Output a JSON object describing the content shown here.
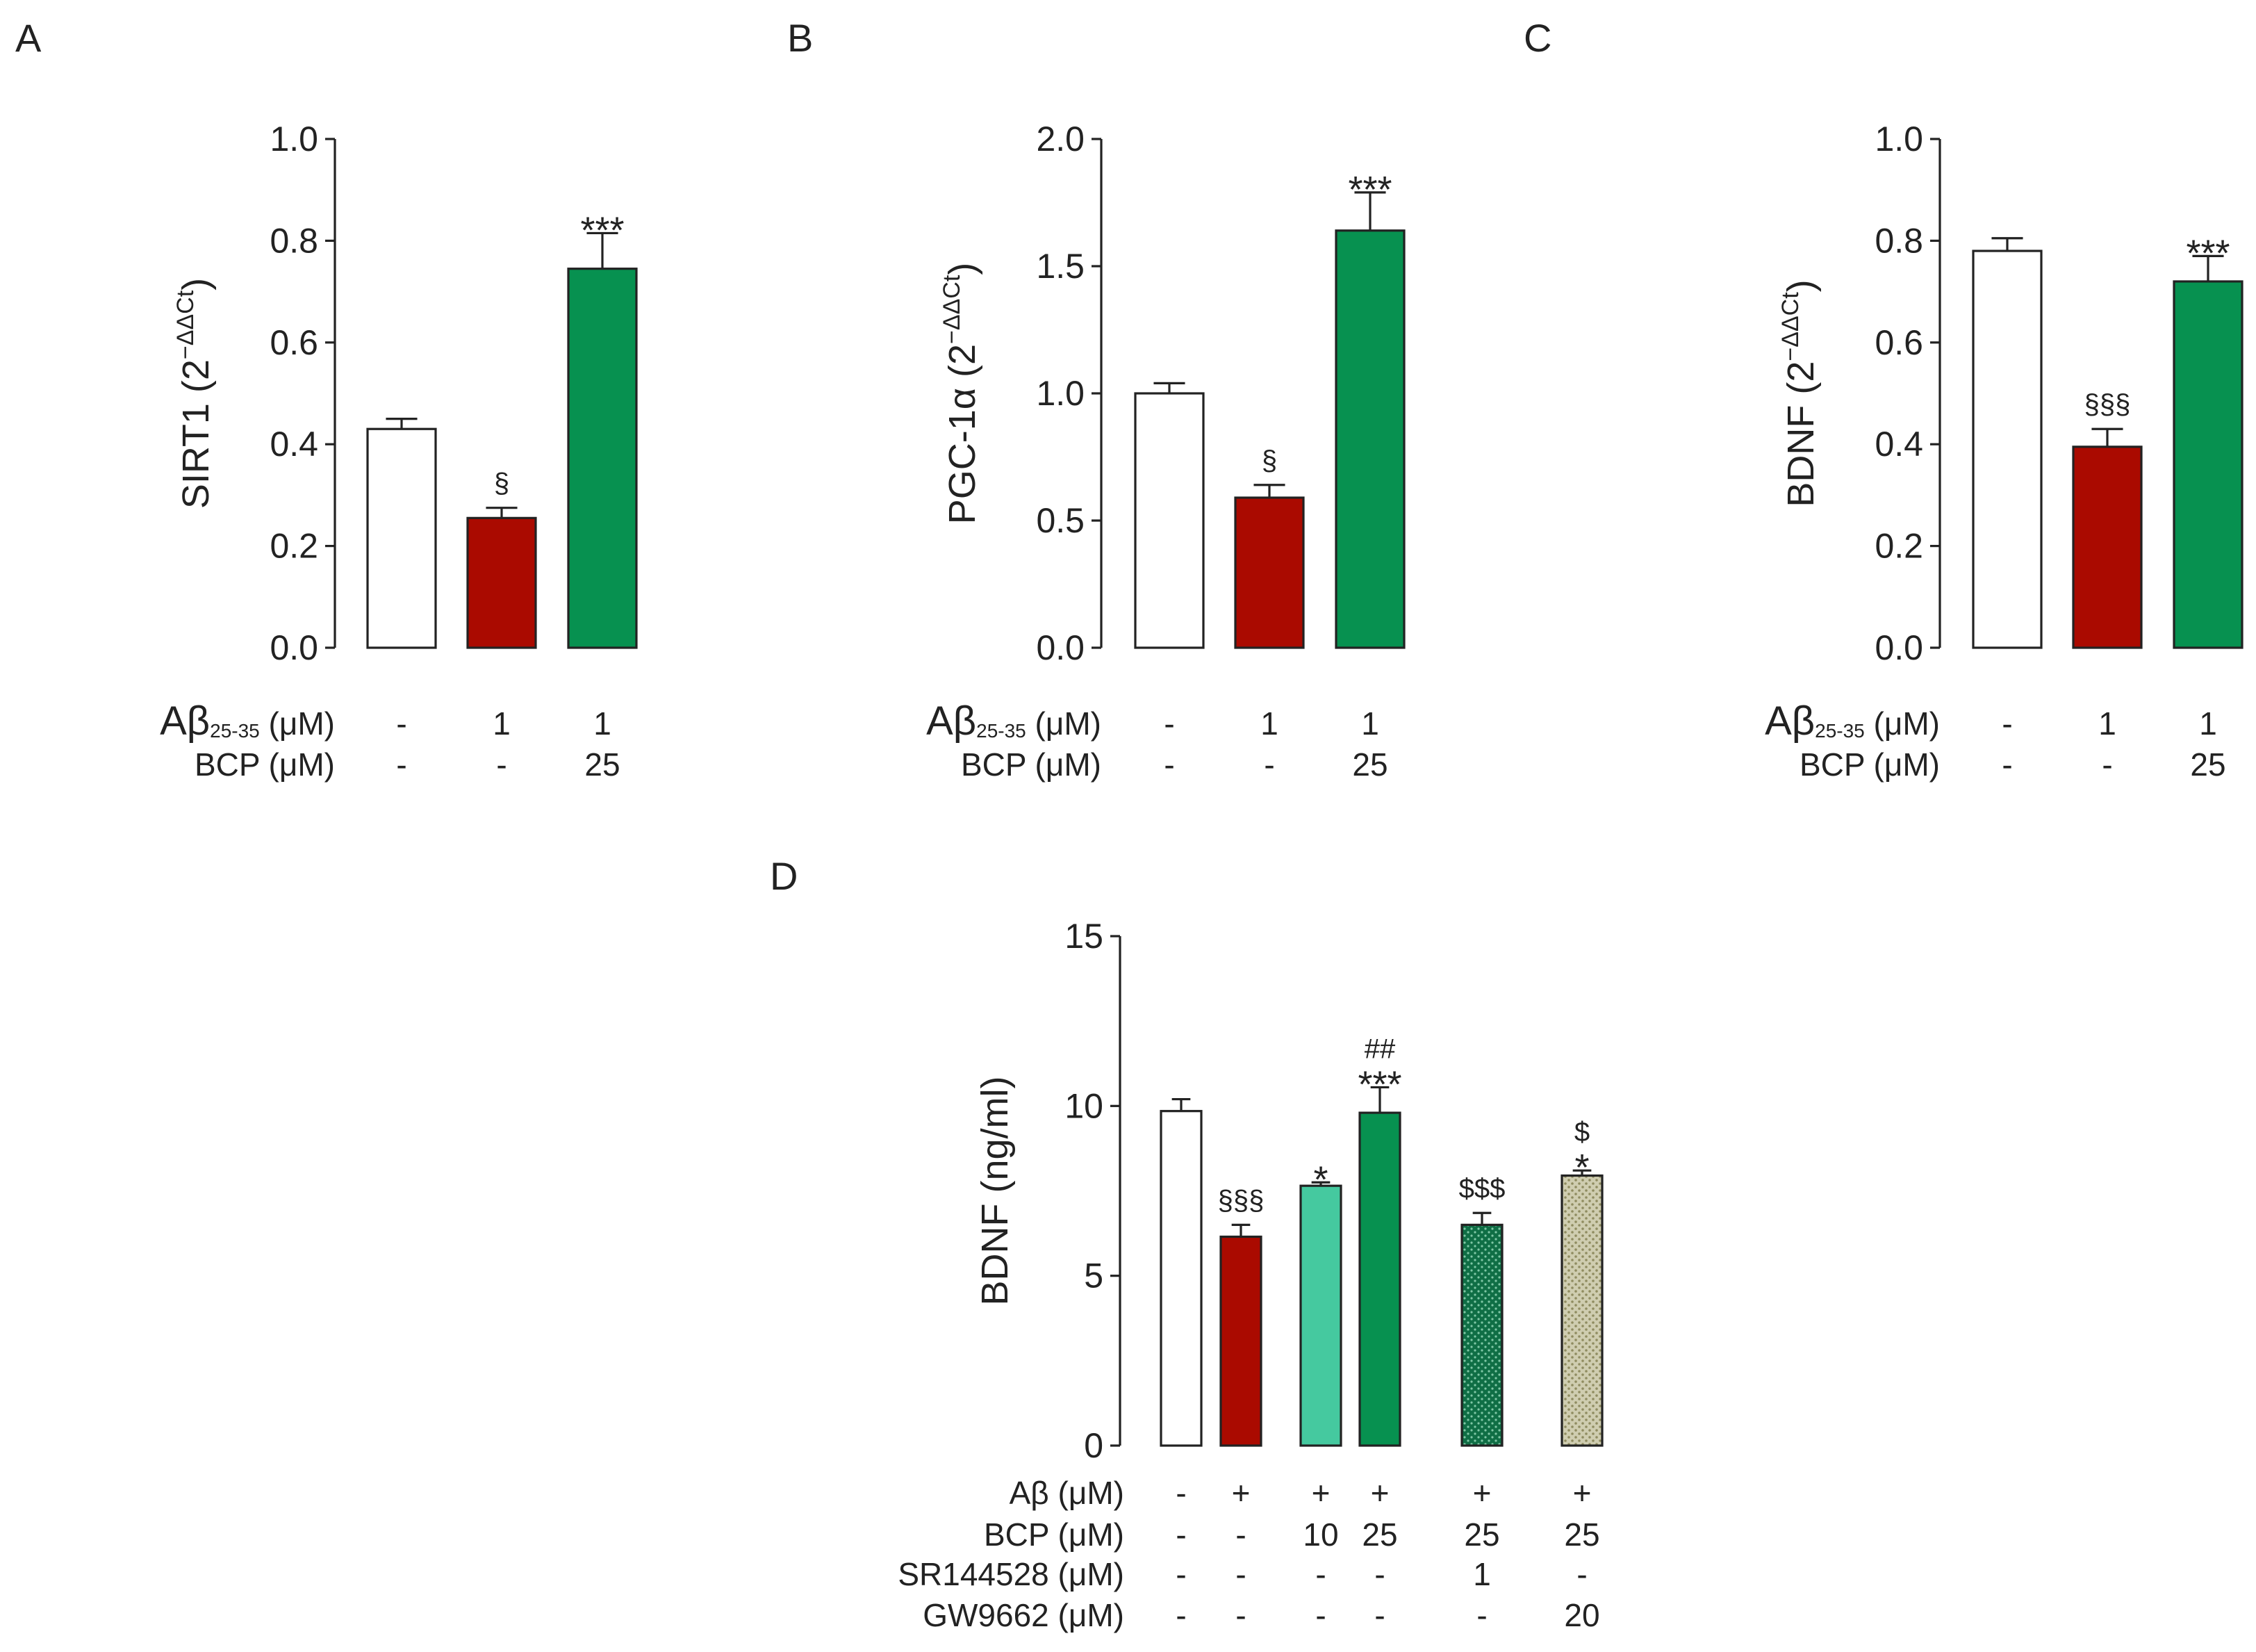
{
  "figure": {
    "colors": {
      "white": "#ffffff",
      "red": "#aa0a00",
      "green": "#079150",
      "light_green": "#45c99f",
      "dotted_green": "#0f6e45",
      "olive_dotted": "#c3c09c",
      "axis": "#222222"
    }
  },
  "chart_data": [
    {
      "panel": "A",
      "type": "bar",
      "ylabel": {
        "main": "SIRT1 (2",
        "sup": "−ΔΔCt",
        "close": ")"
      },
      "ylim": [
        0,
        1.0
      ],
      "yticks": [
        "0.0",
        "0.2",
        "0.4",
        "0.6",
        "0.8",
        "1.0"
      ],
      "ytick_values": [
        0,
        0.2,
        0.4,
        0.6,
        0.8,
        1.0
      ],
      "bars": [
        {
          "value": 0.43,
          "error": 0.02,
          "color": "white",
          "annotation": ""
        },
        {
          "value": 0.255,
          "error": 0.02,
          "color": "red",
          "annotation": "§"
        },
        {
          "value": 0.745,
          "error": 0.07,
          "color": "green",
          "annotation": "***"
        }
      ],
      "treatments": [
        {
          "label_main": "Aβ",
          "label_sub": "25-35",
          "label_unit": " (μM)",
          "values": [
            "-",
            "1",
            "1"
          ]
        },
        {
          "label_main": "BCP (μM)",
          "label_sub": "",
          "label_unit": "",
          "values": [
            "-",
            "-",
            "25"
          ]
        }
      ]
    },
    {
      "panel": "B",
      "type": "bar",
      "ylabel": {
        "main": "PGC-1α (2",
        "sup": "−ΔΔCt",
        "close": ")"
      },
      "ylim": [
        0,
        2.0
      ],
      "yticks": [
        "0.0",
        "0.5",
        "1.0",
        "1.5",
        "2.0"
      ],
      "ytick_values": [
        0,
        0.5,
        1.0,
        1.5,
        2.0
      ],
      "bars": [
        {
          "value": 1.0,
          "error": 0.04,
          "color": "white",
          "annotation": ""
        },
        {
          "value": 0.59,
          "error": 0.05,
          "color": "red",
          "annotation": "§"
        },
        {
          "value": 1.64,
          "error": 0.15,
          "color": "green",
          "annotation": "***"
        }
      ],
      "treatments": [
        {
          "label_main": "Aβ",
          "label_sub": "25-35",
          "label_unit": " (μM)",
          "values": [
            "-",
            "1",
            "1"
          ]
        },
        {
          "label_main": "BCP (μM)",
          "label_sub": "",
          "label_unit": "",
          "values": [
            "-",
            "-",
            "25"
          ]
        }
      ]
    },
    {
      "panel": "C",
      "type": "bar",
      "ylabel": {
        "main": "BDNF (2",
        "sup": "−ΔΔCt",
        "close": ")"
      },
      "ylim": [
        0,
        1.0
      ],
      "yticks": [
        "0.0",
        "0.2",
        "0.4",
        "0.6",
        "0.8",
        "1.0"
      ],
      "ytick_values": [
        0,
        0.2,
        0.4,
        0.6,
        0.8,
        1.0
      ],
      "bars": [
        {
          "value": 0.78,
          "error": 0.025,
          "color": "white",
          "annotation": ""
        },
        {
          "value": 0.395,
          "error": 0.035,
          "color": "red",
          "annotation": "§§§"
        },
        {
          "value": 0.72,
          "error": 0.05,
          "color": "green",
          "annotation": "***"
        }
      ],
      "treatments": [
        {
          "label_main": "Aβ",
          "label_sub": "25-35",
          "label_unit": " (μM)",
          "values": [
            "-",
            "1",
            "1"
          ]
        },
        {
          "label_main": "BCP (μM)",
          "label_sub": "",
          "label_unit": "",
          "values": [
            "-",
            "-",
            "25"
          ]
        }
      ]
    },
    {
      "panel": "D",
      "type": "bar",
      "ylabel": {
        "main": "BDNF (ng/ml)",
        "sup": "",
        "close": ""
      },
      "ylim": [
        0,
        15
      ],
      "yticks": [
        "0",
        "5",
        "10",
        "15"
      ],
      "ytick_values": [
        0,
        5,
        10,
        15
      ],
      "bars": [
        {
          "value": 9.85,
          "error": 0.35,
          "color": "white",
          "annotation": ""
        },
        {
          "value": 6.15,
          "error": 0.35,
          "color": "red",
          "annotation": "§§§"
        },
        {
          "value": 7.65,
          "error": 0.1,
          "color": "light_green",
          "annotation": "*"
        },
        {
          "value": 9.8,
          "error": 0.75,
          "color": "green",
          "annotation": "***",
          "annotation_top": "##"
        },
        {
          "value": 6.5,
          "error": 0.35,
          "color": "dotted_green",
          "annotation": "$$$"
        },
        {
          "value": 7.95,
          "error": 0.15,
          "color": "olive_dotted",
          "annotation": "*",
          "annotation_top": "$"
        }
      ],
      "treatments": [
        {
          "label_main": "Aβ (μM)",
          "values": [
            "-",
            "+",
            "+",
            "+",
            "+",
            "+"
          ]
        },
        {
          "label_main": "BCP (μM)",
          "values": [
            "-",
            "-",
            "10",
            "25",
            "25",
            "25"
          ]
        },
        {
          "label_main": "SR144528 (μM)",
          "values": [
            "-",
            "-",
            "-",
            "-",
            "1",
            "-"
          ]
        },
        {
          "label_main": "GW9662 (μM)",
          "values": [
            "-",
            "-",
            "-",
            "-",
            "-",
            "20"
          ]
        }
      ]
    }
  ]
}
